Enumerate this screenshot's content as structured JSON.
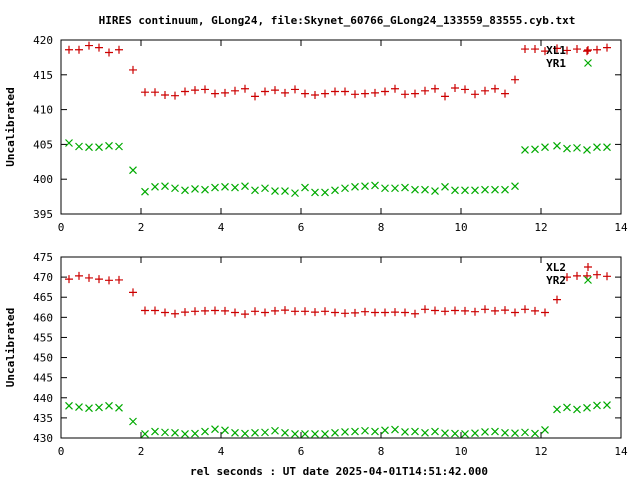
{
  "title": "HIRES continuum, GLong24, file:Skynet_60766_GLong24_133559_83555.cyb.txt",
  "chart_data": [
    {
      "type": "scatter",
      "ylabel": "Uncalibrated",
      "xlabel": "",
      "xlim": [
        0,
        14
      ],
      "ylim": [
        395,
        420
      ],
      "xticks": [
        0,
        2,
        4,
        6,
        8,
        10,
        12,
        14
      ],
      "yticks": [
        395,
        400,
        405,
        410,
        415,
        420
      ],
      "grid": false,
      "legend_position": "top-right",
      "x": [
        0.2,
        0.45,
        0.7,
        0.95,
        1.2,
        1.45,
        1.8,
        2.1,
        2.35,
        2.6,
        2.85,
        3.1,
        3.35,
        3.6,
        3.85,
        4.1,
        4.35,
        4.6,
        4.85,
        5.1,
        5.35,
        5.6,
        5.85,
        6.1,
        6.35,
        6.6,
        6.85,
        7.1,
        7.35,
        7.6,
        7.85,
        8.1,
        8.35,
        8.6,
        8.85,
        9.1,
        9.35,
        9.6,
        9.85,
        10.1,
        10.35,
        10.6,
        10.85,
        11.1,
        11.35,
        11.6,
        11.85,
        12.1,
        12.4,
        12.65,
        12.9,
        13.15,
        13.4,
        13.65
      ],
      "series": [
        {
          "name": "XL1",
          "color": "#cc0000",
          "marker": "plus",
          "values": [
            418.6,
            418.6,
            419.2,
            418.9,
            418.2,
            418.6,
            415.7,
            412.5,
            412.5,
            412.1,
            412.0,
            412.6,
            412.8,
            412.9,
            412.3,
            412.4,
            412.7,
            413.0,
            411.9,
            412.6,
            412.8,
            412.4,
            412.9,
            412.3,
            412.1,
            412.3,
            412.6,
            412.6,
            412.2,
            412.3,
            412.4,
            412.6,
            413.0,
            412.2,
            412.3,
            412.7,
            413.0,
            411.9,
            413.1,
            412.9,
            412.2,
            412.7,
            413.0,
            412.3,
            414.3,
            418.7,
            418.7,
            418.4,
            418.8,
            418.5,
            418.7,
            418.4,
            418.6,
            418.9
          ]
        },
        {
          "name": "YR1",
          "color": "#00aa00",
          "marker": "cross",
          "values": [
            405.2,
            404.7,
            404.6,
            404.6,
            404.8,
            404.7,
            401.3,
            398.2,
            398.9,
            399.0,
            398.7,
            398.4,
            398.6,
            398.5,
            398.8,
            398.9,
            398.8,
            399.0,
            398.4,
            398.7,
            398.3,
            398.3,
            398.0,
            398.8,
            398.1,
            398.1,
            398.4,
            398.7,
            398.9,
            399.0,
            399.1,
            398.7,
            398.7,
            398.8,
            398.5,
            398.5,
            398.3,
            398.9,
            398.4,
            398.4,
            398.4,
            398.5,
            398.5,
            398.5,
            399.0,
            404.2,
            404.3,
            404.6,
            404.8,
            404.4,
            404.5,
            404.2,
            404.6,
            404.6
          ]
        }
      ]
    },
    {
      "type": "scatter",
      "ylabel": "Uncalibrated",
      "xlabel": "rel seconds : UT date 2025-04-01T14:51:42.000",
      "xlim": [
        0,
        14
      ],
      "ylim": [
        430,
        475
      ],
      "xticks": [
        0,
        2,
        4,
        6,
        8,
        10,
        12,
        14
      ],
      "yticks": [
        430,
        435,
        440,
        445,
        450,
        455,
        460,
        465,
        470,
        475
      ],
      "grid": false,
      "legend_position": "top-right",
      "x": [
        0.2,
        0.45,
        0.7,
        0.95,
        1.2,
        1.45,
        1.8,
        2.1,
        2.35,
        2.6,
        2.85,
        3.1,
        3.35,
        3.6,
        3.85,
        4.1,
        4.35,
        4.6,
        4.85,
        5.1,
        5.35,
        5.6,
        5.85,
        6.1,
        6.35,
        6.6,
        6.85,
        7.1,
        7.35,
        7.6,
        7.85,
        8.1,
        8.35,
        8.6,
        8.85,
        9.1,
        9.35,
        9.6,
        9.85,
        10.1,
        10.35,
        10.6,
        10.85,
        11.1,
        11.35,
        11.6,
        11.85,
        12.1,
        12.4,
        12.65,
        12.9,
        13.15,
        13.4,
        13.65
      ],
      "series": [
        {
          "name": "XL2",
          "color": "#cc0000",
          "marker": "plus",
          "values": [
            469.5,
            470.3,
            469.8,
            469.5,
            469.2,
            469.3,
            466.2,
            461.7,
            461.7,
            461.2,
            460.9,
            461.3,
            461.5,
            461.6,
            461.7,
            461.6,
            461.2,
            460.8,
            461.5,
            461.2,
            461.6,
            461.8,
            461.5,
            461.5,
            461.3,
            461.5,
            461.2,
            461.0,
            461.1,
            461.4,
            461.2,
            461.2,
            461.3,
            461.2,
            460.9,
            462.0,
            461.7,
            461.5,
            461.7,
            461.6,
            461.4,
            462.0,
            461.6,
            461.8,
            461.2,
            462.0,
            461.6,
            461.2,
            464.4,
            470.0,
            470.3,
            470.3,
            470.6,
            470.2
          ]
        },
        {
          "name": "YR2",
          "color": "#00aa00",
          "marker": "cross",
          "values": [
            438.0,
            437.7,
            437.4,
            437.6,
            438.0,
            437.5,
            434.1,
            431.0,
            431.6,
            431.4,
            431.3,
            431.0,
            431.1,
            431.6,
            432.2,
            431.9,
            431.3,
            431.1,
            431.3,
            431.4,
            431.8,
            431.3,
            431.0,
            431.0,
            431.0,
            431.0,
            431.3,
            431.5,
            431.6,
            431.8,
            431.6,
            431.9,
            432.1,
            431.5,
            431.6,
            431.3,
            431.6,
            431.2,
            431.1,
            431.0,
            431.2,
            431.5,
            431.6,
            431.3,
            431.2,
            431.4,
            431.1,
            432.0,
            437.1,
            437.6,
            437.1,
            437.5,
            438.1,
            438.2
          ]
        }
      ]
    }
  ]
}
